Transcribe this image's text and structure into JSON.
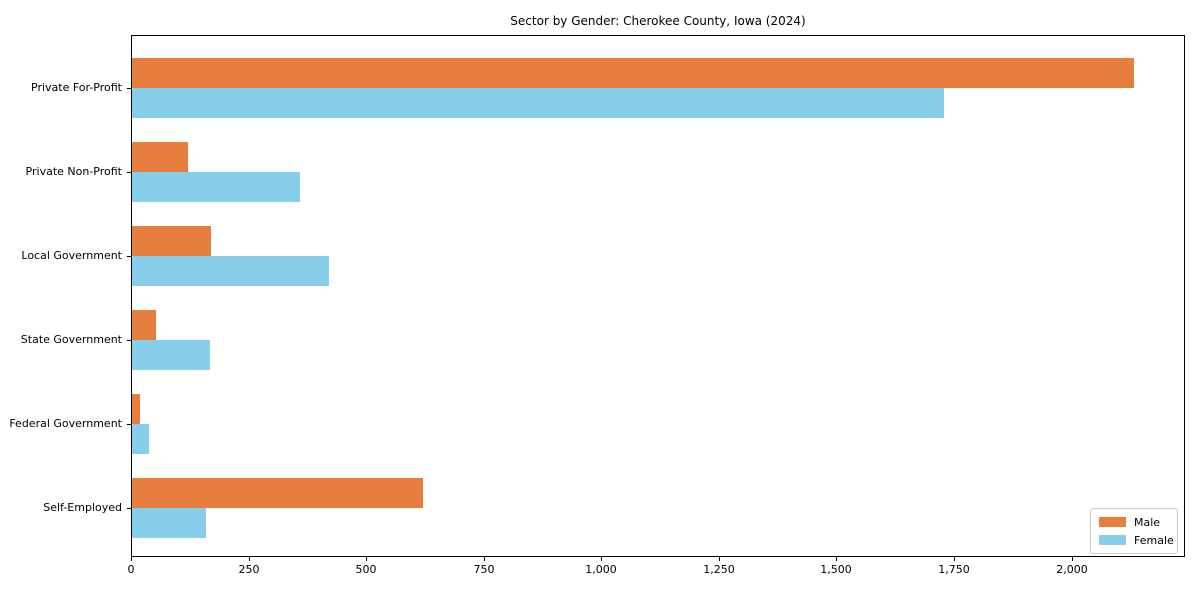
{
  "chart_data": {
    "type": "bar",
    "orientation": "horizontal",
    "title": "Sector by Gender: Cherokee County, Iowa (2024)",
    "categories": [
      "Private For-Profit",
      "Private Non-Profit",
      "Local Government",
      "State Government",
      "Federal Government",
      "Self-Employed"
    ],
    "series": [
      {
        "name": "Male",
        "color": "#e87e3d",
        "values": [
          2130,
          120,
          168,
          52,
          18,
          618
        ]
      },
      {
        "name": "Female",
        "color": "#87ceeb",
        "values": [
          1727,
          358,
          418,
          166,
          37,
          158
        ]
      }
    ],
    "xlabel": "",
    "ylabel": "",
    "xlim": [
      0,
      2237
    ],
    "xticks": [
      0,
      250,
      500,
      750,
      1000,
      1250,
      1500,
      1750,
      2000
    ],
    "xtick_labels": [
      "0",
      "250",
      "500",
      "750",
      "1,000",
      "1,250",
      "1,500",
      "1,750",
      "2,000"
    ],
    "grid": false,
    "legend": {
      "position": "lower right",
      "entries": [
        "Male",
        "Female"
      ]
    }
  }
}
